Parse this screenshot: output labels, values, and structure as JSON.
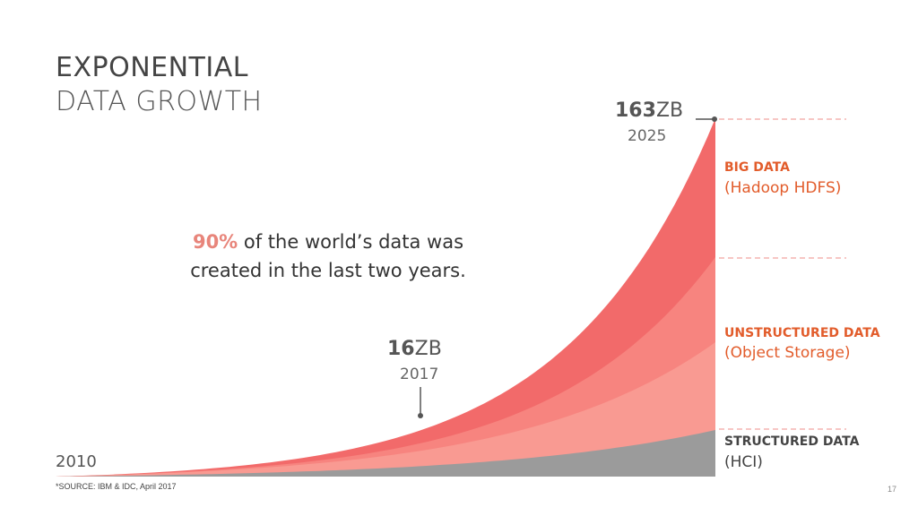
{
  "title": {
    "line1": "EXPONENTIAL",
    "line2": "DATA GROWTH"
  },
  "callout": {
    "highlight": "90%",
    "text_line1": " of the world’s data was",
    "text_line2": "created in the last two years."
  },
  "markers": {
    "end": {
      "value": "163",
      "unit": "ZB",
      "year": "2025"
    },
    "mid": {
      "value": "16",
      "unit": "ZB",
      "year": "2017"
    },
    "start": {
      "year": "2010"
    }
  },
  "segments": {
    "big_data": {
      "name": "BIG DATA",
      "sub": "(Hadoop HDFS)"
    },
    "unstructured": {
      "name": "UNSTRUCTURED DATA",
      "sub": "(Object Storage)"
    },
    "structured": {
      "name": "STRUCTURED DATA",
      "sub": "(HCI)"
    }
  },
  "source": "*SOURCE: IBM & IDC, April 2017",
  "page_number": "17",
  "colors": {
    "big_data": "#f26a6a",
    "unstructured_outer": "#f7847f",
    "unstructured_inner": "#f99a92",
    "structured": "#9b9b9b",
    "accent_text": "#e25c2b",
    "structured_text": "#444444",
    "divider": "#f2a3a0"
  },
  "chart_data": {
    "type": "area",
    "x_start": 2010,
    "x_end": 2025,
    "unit": "ZB",
    "annotated_points": [
      {
        "year": 2017,
        "value": 16
      },
      {
        "year": 2025,
        "value": 163
      }
    ],
    "layers": [
      "BIG DATA",
      "UNSTRUCTURED DATA",
      "STRUCTURED DATA"
    ],
    "title": "EXPONENTIAL DATA GROWTH"
  }
}
